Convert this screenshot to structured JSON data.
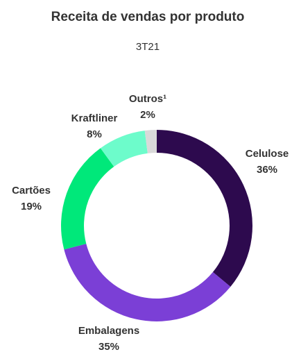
{
  "chart_data": {
    "type": "donut",
    "title": "Receita de vendas por produto",
    "subtitle": "3T21",
    "categories": [
      "Celulose",
      "Embalagens",
      "Cartões",
      "Kraftliner",
      "Outros¹"
    ],
    "values": [
      36,
      35,
      19,
      8,
      2
    ],
    "value_labels": [
      "36%",
      "35%",
      "19%",
      "8%",
      "2%"
    ],
    "colors": [
      "#2d0a4e",
      "#7b3fd6",
      "#00e87a",
      "#6dfccb",
      "#d9d9d9"
    ]
  }
}
